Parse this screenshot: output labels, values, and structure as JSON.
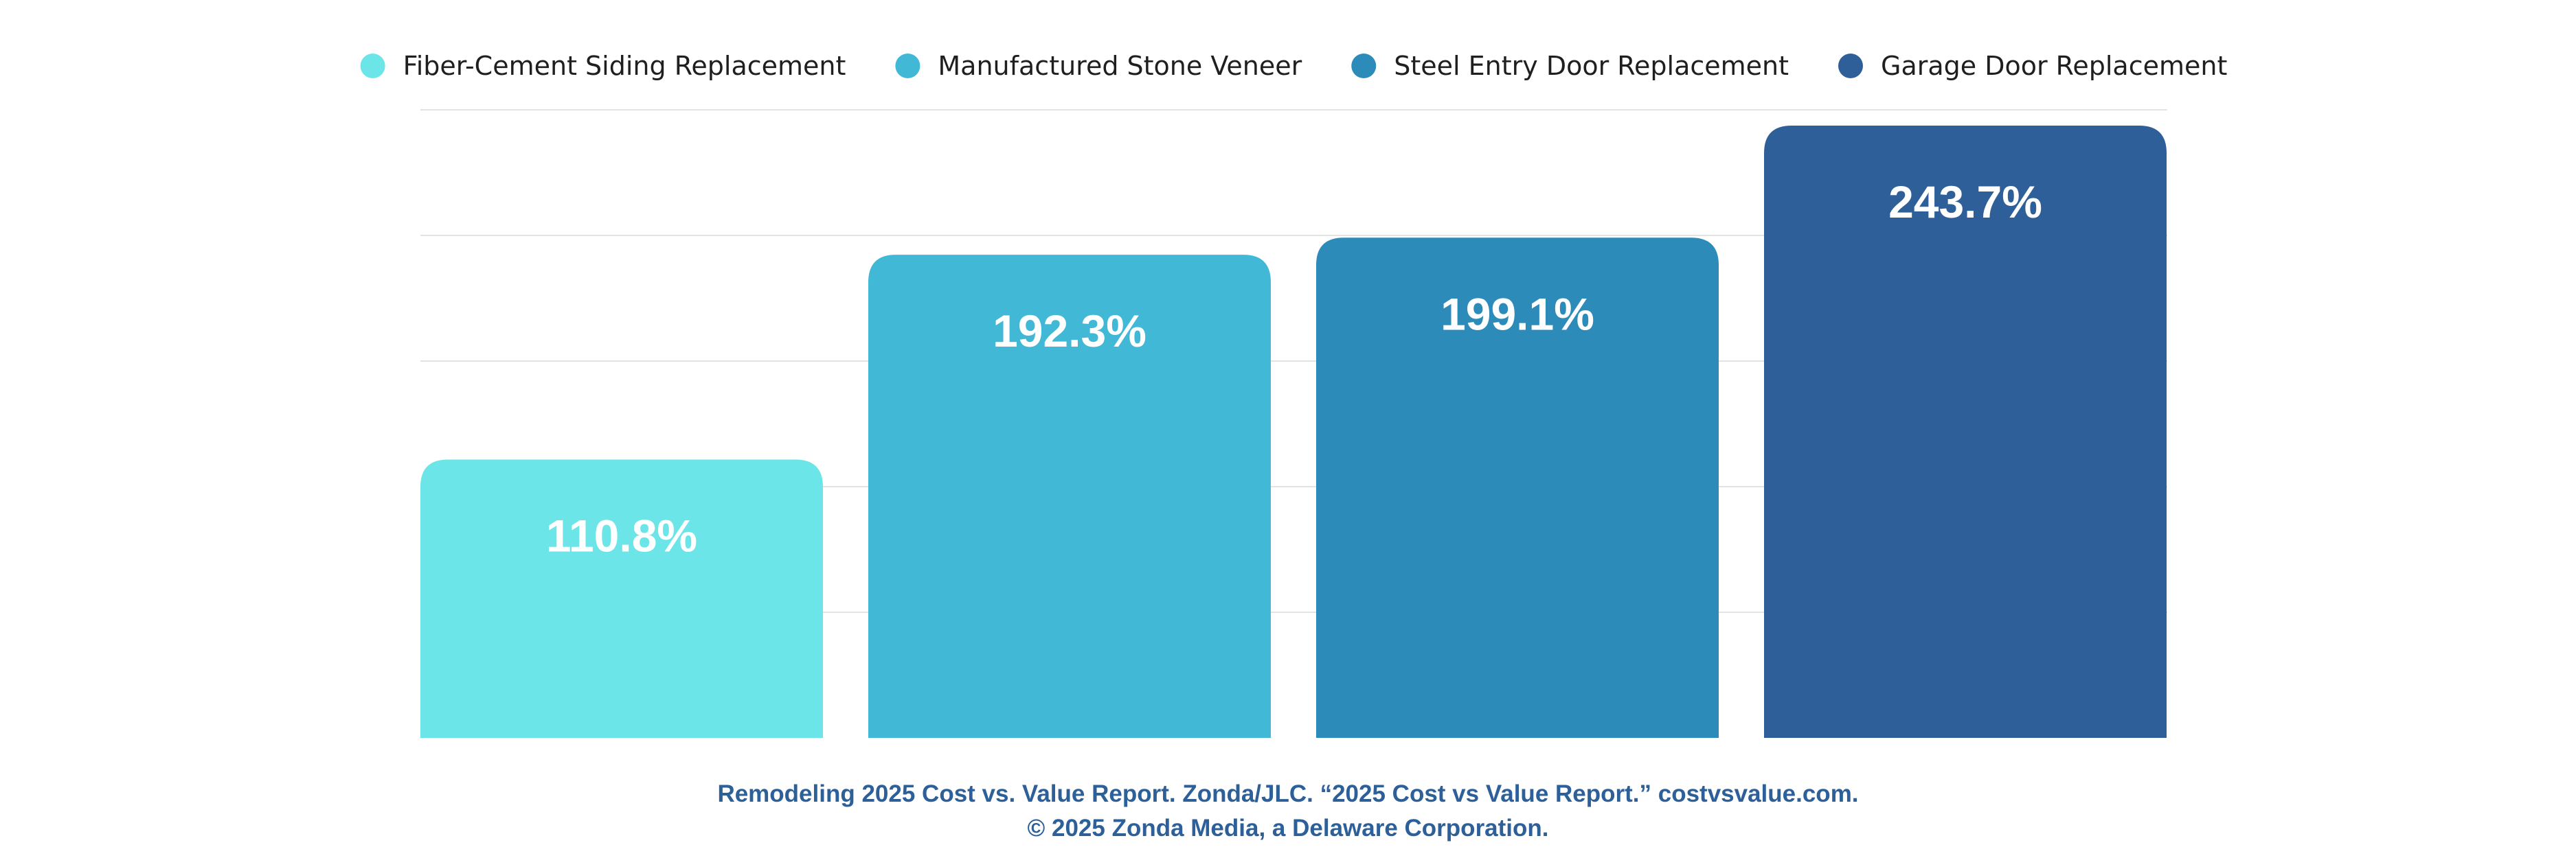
{
  "chart_data": {
    "type": "bar",
    "categories": [
      "Fiber-Cement Siding Replacement",
      "Manufactured Stone Veneer",
      "Steel Entry Door Replacement",
      "Garage Door Replacement"
    ],
    "values": [
      110.8,
      192.3,
      199.1,
      243.7
    ],
    "value_labels": [
      "110.8%",
      "192.3%",
      "199.1%",
      "243.7%"
    ],
    "colors": [
      "#6ce5e8",
      "#41b8d5",
      "#2d8bba",
      "#2f5f98"
    ],
    "ylim": [
      0,
      250
    ],
    "grid": true,
    "legend_position": "top",
    "source_line1": "Remodeling 2025 Cost vs. Value Report. Zonda/JLC. “2025 Cost vs Value Report.” costvsvalue.com.",
    "source_line2": "© 2025 Zonda Media, a Delaware Corporation."
  }
}
